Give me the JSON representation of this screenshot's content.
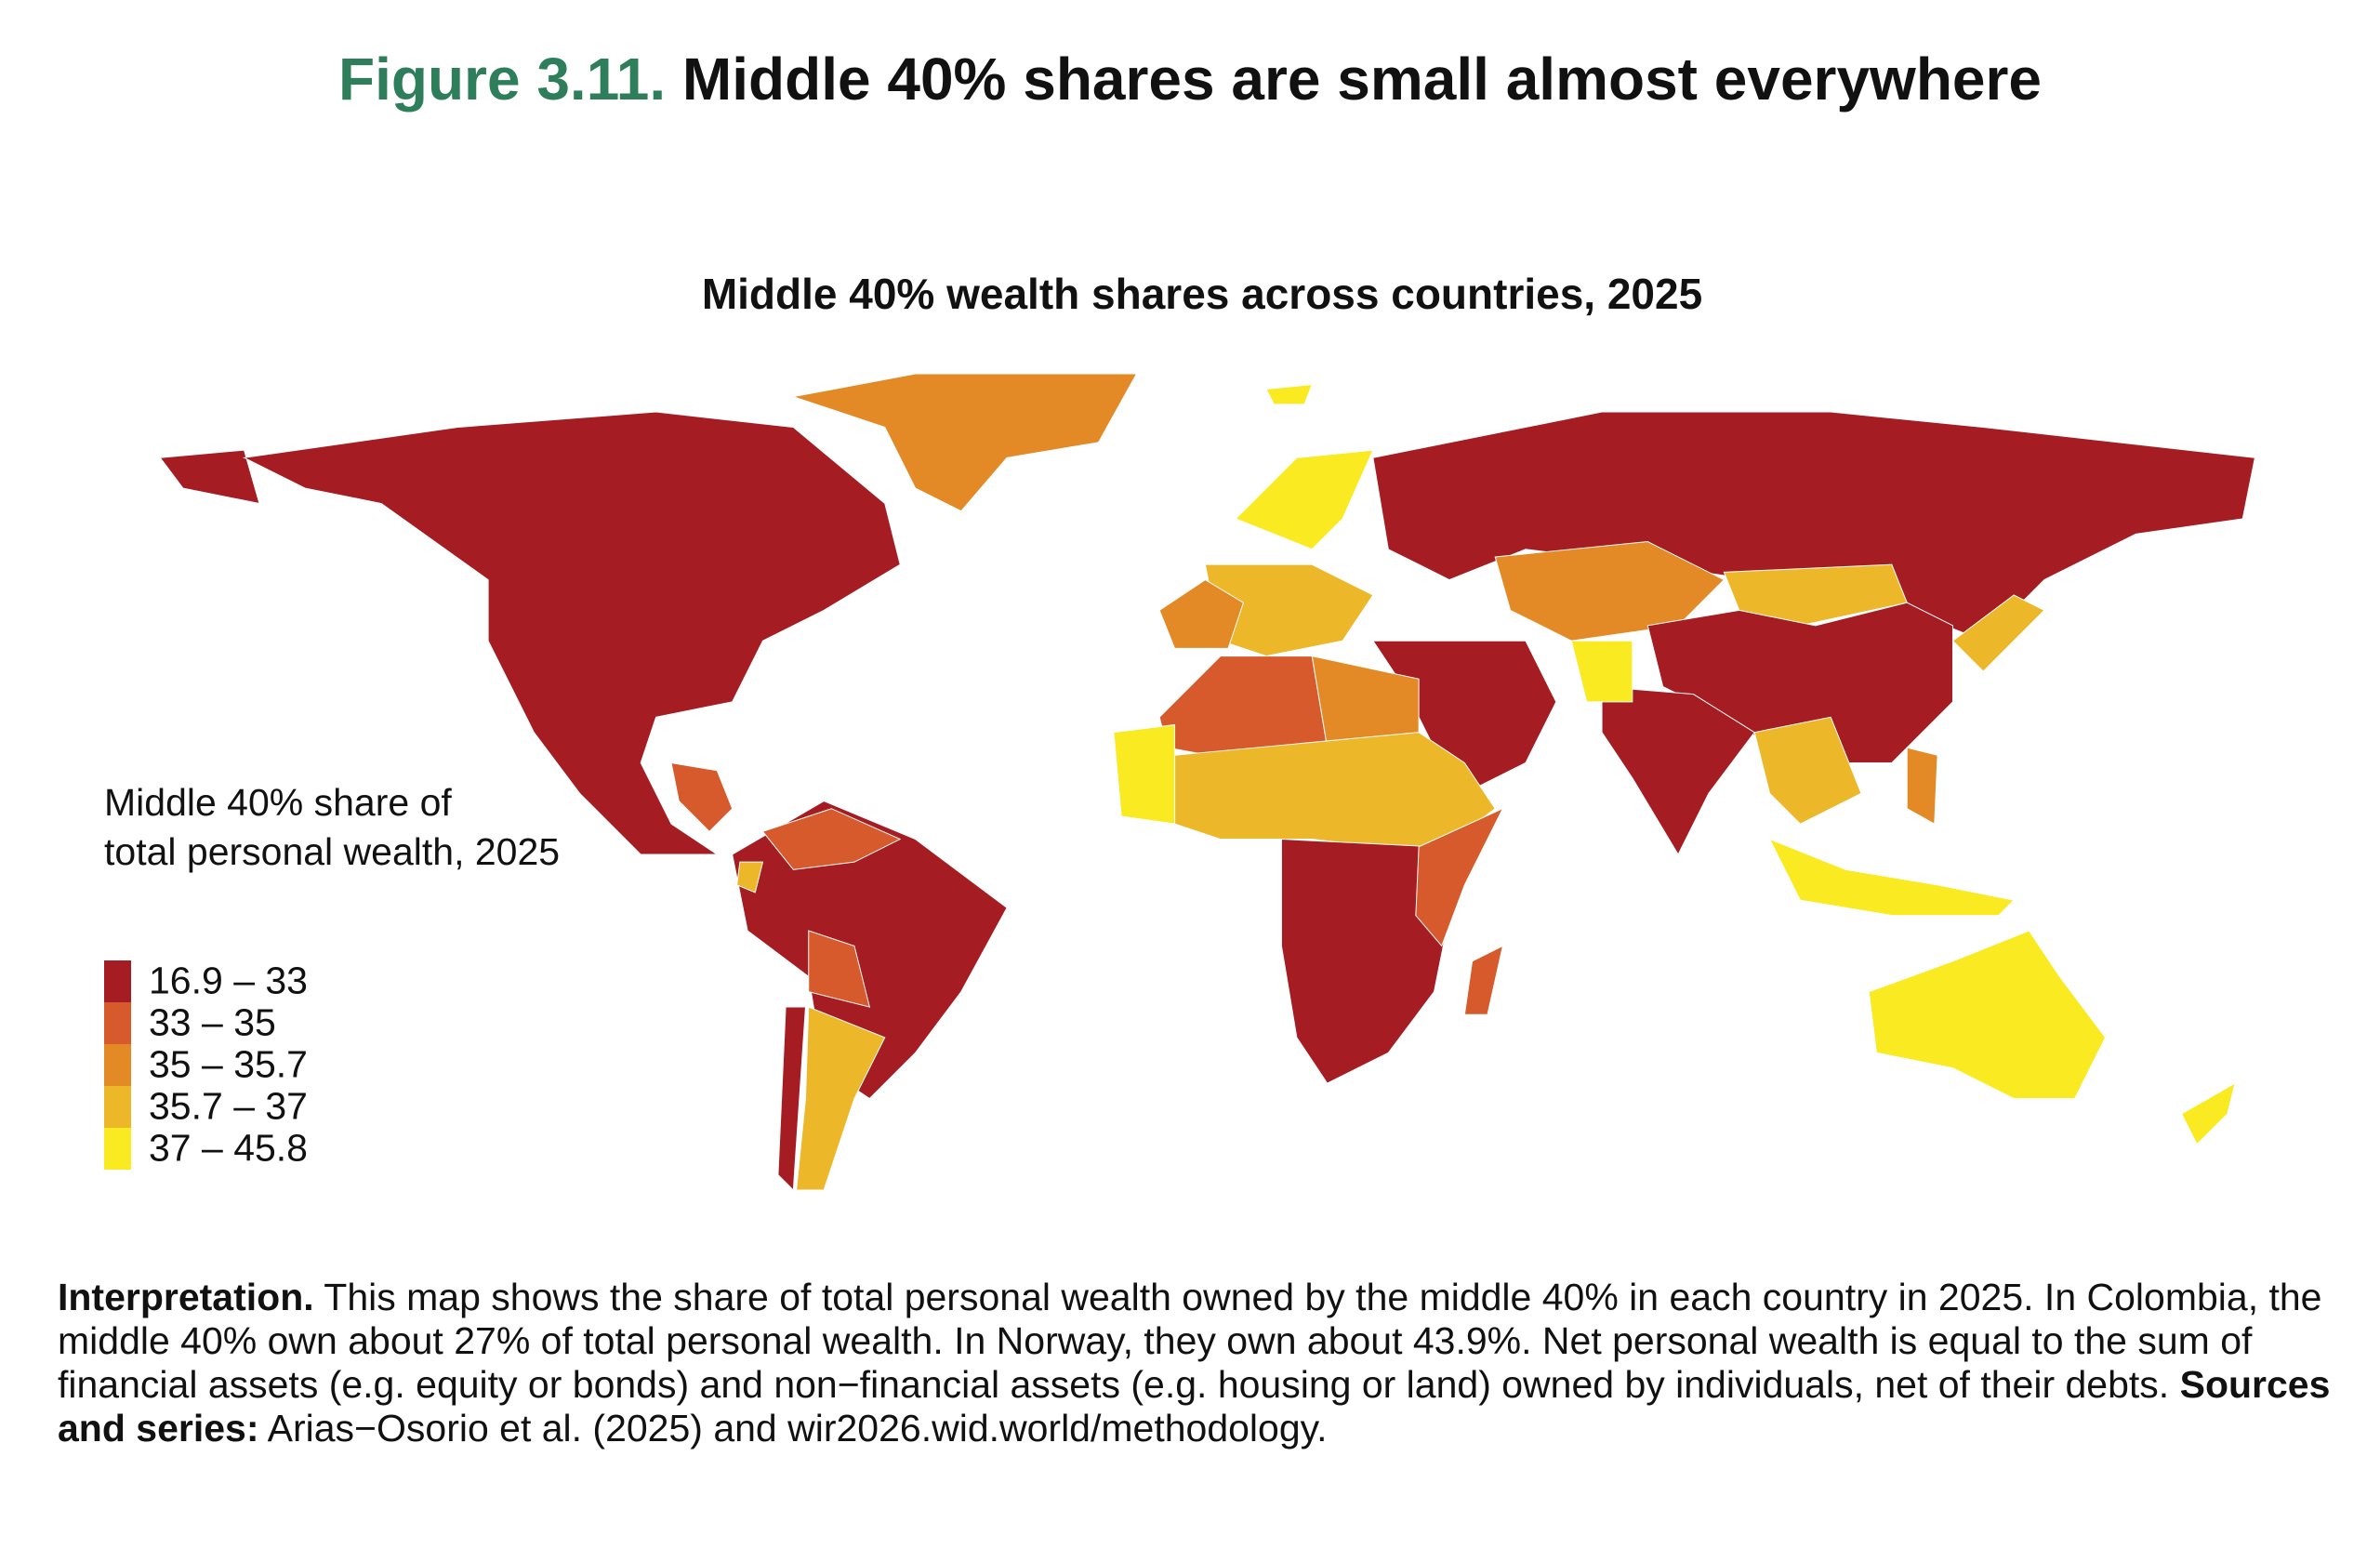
{
  "header": {
    "figure_label": "Figure 3.11.",
    "title": "Middle 40% shares are small almost everywhere"
  },
  "map": {
    "type": "choropleth",
    "subtitle": "Middle 40% wealth shares across countries, 2025",
    "legend": {
      "title_lines": [
        "Middle 40% share of",
        "total personal wealth, 2025"
      ],
      "items": [
        {
          "label": "16.9 – 33",
          "color": "#a51c22"
        },
        {
          "label": "33 – 35",
          "color": "#d65a2c"
        },
        {
          "label": "35 – 35.7",
          "color": "#e38a26"
        },
        {
          "label": "35.7 – 37",
          "color": "#ecb82a"
        },
        {
          "label": "37 – 45.8",
          "color": "#f9ea21"
        }
      ]
    }
  },
  "interpretation": {
    "lead": "Interpretation.",
    "text": "This map shows the share of total personal wealth owned by the middle 40% in each country in 2025. In Colombia, the middle 40% own about 27% of total personal wealth. In Norway, they own about 43.9%. Net personal wealth is equal to the sum of financial assets (e.g. equity or bonds) and non−financial assets (e.g. housing or land) owned by individuals, net of their debts.",
    "sources_lead": "Sources and series:",
    "sources_text": "Arias−Osorio et al. (2025) and wir2026.wid.world/methodology."
  }
}
